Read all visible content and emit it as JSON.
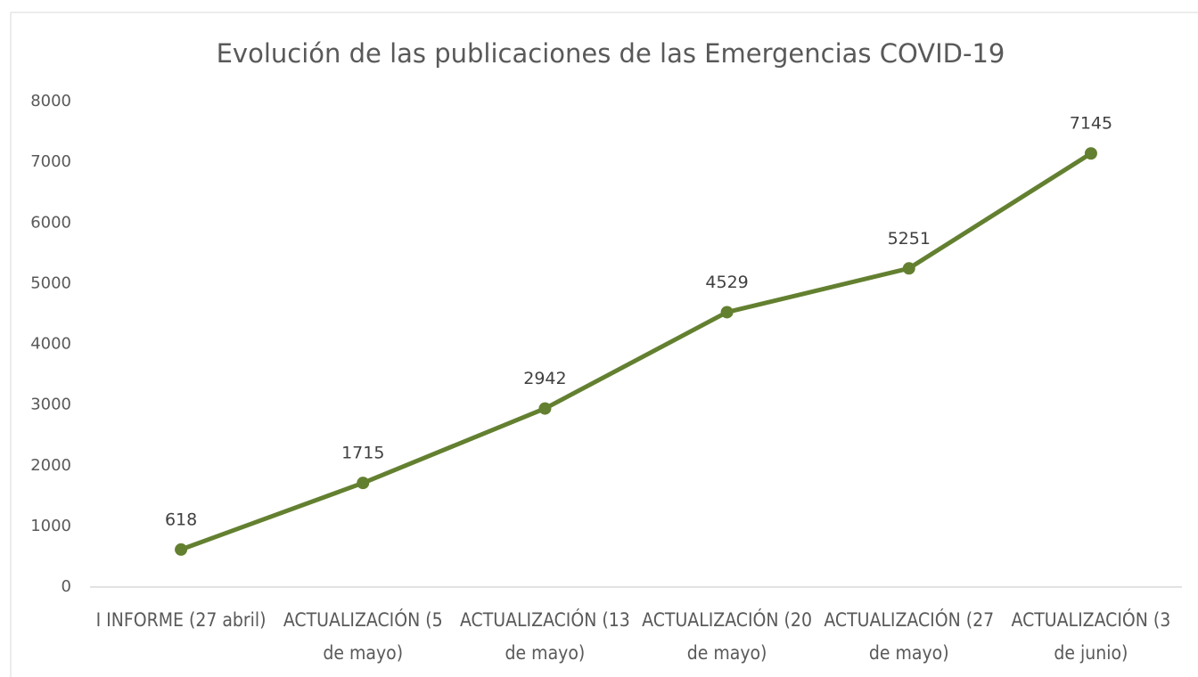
{
  "chart_data": {
    "type": "line",
    "title": "Evolución de las publicaciones de las Emergencias COVID-19",
    "categories": [
      "I INFORME (27 abril)",
      "ACTUALIZACIÓN (5 de mayo)",
      "ACTUALIZACIÓN (13 de mayo)",
      "ACTUALIZACIÓN (20 de mayo)",
      "ACTUALIZACIÓN (27 de mayo)",
      "ACTUALIZACIÓN (3 de junio)"
    ],
    "values": [
      618,
      1715,
      2942,
      4529,
      5251,
      7145
    ],
    "color": "#638030",
    "ylim": [
      0,
      8000
    ],
    "yticks": [
      0,
      1000,
      2000,
      3000,
      4000,
      5000,
      6000,
      7000,
      8000
    ],
    "grid": false
  }
}
